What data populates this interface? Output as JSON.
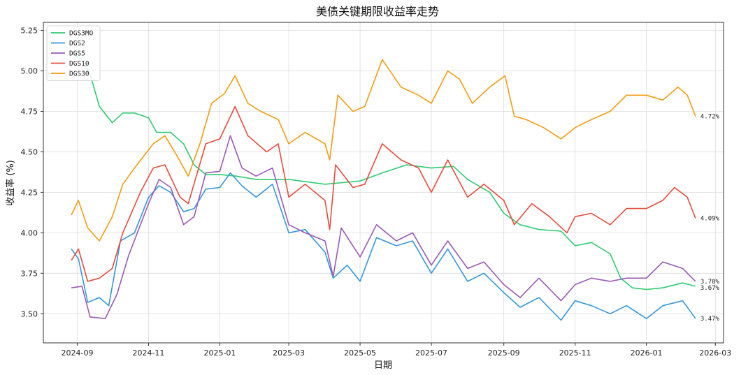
{
  "chart_data": {
    "type": "line",
    "title": "美债关键期限收益率走势",
    "xlabel": "日期",
    "ylabel": "收益率 (%)",
    "ylim": [
      3.32,
      5.3
    ],
    "xlim": [
      "2024-08-03",
      "2026-03-08"
    ],
    "y_ticks": [
      "3.50",
      "3.75",
      "4.00",
      "4.25",
      "4.50",
      "4.75",
      "5.00",
      "5.25"
    ],
    "x_ticks": [
      "2024-09",
      "2024-11",
      "2025-01",
      "2025-03",
      "2025-05",
      "2025-07",
      "2025-09",
      "2025-11",
      "2026-01",
      "2026-03"
    ],
    "grid": true,
    "legend_position": "top-left",
    "series": [
      {
        "name": "DGS3MO",
        "color": "#2ecc71",
        "end_label": "3.67%",
        "points": [
          [
            "2024-08-27",
            5.11
          ],
          [
            "2024-09-05",
            5.07
          ],
          [
            "2024-09-12",
            4.98
          ],
          [
            "2024-09-20",
            4.78
          ],
          [
            "2024-10-01",
            4.68
          ],
          [
            "2024-10-10",
            4.74
          ],
          [
            "2024-10-20",
            4.74
          ],
          [
            "2024-11-01",
            4.71
          ],
          [
            "2024-11-08",
            4.62
          ],
          [
            "2024-11-20",
            4.62
          ],
          [
            "2024-12-01",
            4.55
          ],
          [
            "2024-12-10",
            4.42
          ],
          [
            "2024-12-20",
            4.36
          ],
          [
            "2025-01-01",
            4.36
          ],
          [
            "2025-01-15",
            4.35
          ],
          [
            "2025-02-01",
            4.33
          ],
          [
            "2025-03-01",
            4.33
          ],
          [
            "2025-04-01",
            4.3
          ],
          [
            "2025-05-01",
            4.32
          ],
          [
            "2025-05-20",
            4.37
          ],
          [
            "2025-06-10",
            4.42
          ],
          [
            "2025-07-01",
            4.4
          ],
          [
            "2025-07-20",
            4.41
          ],
          [
            "2025-08-01",
            4.33
          ],
          [
            "2025-08-20",
            4.25
          ],
          [
            "2025-09-01",
            4.12
          ],
          [
            "2025-09-15",
            4.05
          ],
          [
            "2025-10-01",
            4.02
          ],
          [
            "2025-10-20",
            4.01
          ],
          [
            "2025-11-01",
            3.92
          ],
          [
            "2025-11-15",
            3.94
          ],
          [
            "2025-12-01",
            3.87
          ],
          [
            "2025-12-10",
            3.72
          ],
          [
            "2025-12-20",
            3.66
          ],
          [
            "2026-01-01",
            3.65
          ],
          [
            "2026-01-15",
            3.66
          ],
          [
            "2026-02-01",
            3.69
          ],
          [
            "2026-02-12",
            3.67
          ]
        ]
      },
      {
        "name": "DGS2",
        "color": "#3498db",
        "end_label": "3.47%",
        "points": [
          [
            "2024-08-27",
            3.9
          ],
          [
            "2024-09-02",
            3.84
          ],
          [
            "2024-09-10",
            3.57
          ],
          [
            "2024-09-20",
            3.6
          ],
          [
            "2024-09-28",
            3.55
          ],
          [
            "2024-10-08",
            3.95
          ],
          [
            "2024-10-20",
            4.0
          ],
          [
            "2024-11-01",
            4.22
          ],
          [
            "2024-11-10",
            4.29
          ],
          [
            "2024-11-20",
            4.25
          ],
          [
            "2024-12-01",
            4.13
          ],
          [
            "2024-12-10",
            4.15
          ],
          [
            "2024-12-20",
            4.27
          ],
          [
            "2025-01-01",
            4.28
          ],
          [
            "2025-01-10",
            4.37
          ],
          [
            "2025-01-20",
            4.29
          ],
          [
            "2025-02-01",
            4.22
          ],
          [
            "2025-02-15",
            4.3
          ],
          [
            "2025-03-01",
            4.0
          ],
          [
            "2025-03-15",
            4.02
          ],
          [
            "2025-04-01",
            3.88
          ],
          [
            "2025-04-08",
            3.72
          ],
          [
            "2025-04-20",
            3.8
          ],
          [
            "2025-05-01",
            3.7
          ],
          [
            "2025-05-15",
            3.97
          ],
          [
            "2025-06-01",
            3.92
          ],
          [
            "2025-06-15",
            3.95
          ],
          [
            "2025-07-01",
            3.75
          ],
          [
            "2025-07-15",
            3.9
          ],
          [
            "2025-08-01",
            3.7
          ],
          [
            "2025-08-15",
            3.75
          ],
          [
            "2025-09-01",
            3.63
          ],
          [
            "2025-09-15",
            3.54
          ],
          [
            "2025-10-01",
            3.6
          ],
          [
            "2025-10-20",
            3.46
          ],
          [
            "2025-11-01",
            3.58
          ],
          [
            "2025-11-15",
            3.55
          ],
          [
            "2025-12-01",
            3.5
          ],
          [
            "2025-12-15",
            3.55
          ],
          [
            "2026-01-01",
            3.47
          ],
          [
            "2026-01-15",
            3.55
          ],
          [
            "2026-02-01",
            3.58
          ],
          [
            "2026-02-12",
            3.47
          ]
        ]
      },
      {
        "name": "DGS5",
        "color": "#9b59b6",
        "end_label": "3.70%",
        "points": [
          [
            "2024-08-27",
            3.66
          ],
          [
            "2024-09-05",
            3.67
          ],
          [
            "2024-09-12",
            3.48
          ],
          [
            "2024-09-25",
            3.47
          ],
          [
            "2024-10-05",
            3.62
          ],
          [
            "2024-10-15",
            3.86
          ],
          [
            "2024-11-01",
            4.18
          ],
          [
            "2024-11-10",
            4.33
          ],
          [
            "2024-11-20",
            4.28
          ],
          [
            "2024-12-01",
            4.05
          ],
          [
            "2024-12-10",
            4.1
          ],
          [
            "2024-12-20",
            4.37
          ],
          [
            "2025-01-01",
            4.38
          ],
          [
            "2025-01-10",
            4.6
          ],
          [
            "2025-01-20",
            4.4
          ],
          [
            "2025-02-01",
            4.35
          ],
          [
            "2025-02-15",
            4.4
          ],
          [
            "2025-03-01",
            4.05
          ],
          [
            "2025-03-15",
            4.0
          ],
          [
            "2025-04-01",
            3.95
          ],
          [
            "2025-04-08",
            3.73
          ],
          [
            "2025-04-15",
            4.03
          ],
          [
            "2025-05-01",
            3.85
          ],
          [
            "2025-05-15",
            4.05
          ],
          [
            "2025-06-01",
            3.95
          ],
          [
            "2025-06-15",
            4.0
          ],
          [
            "2025-07-01",
            3.8
          ],
          [
            "2025-07-15",
            3.95
          ],
          [
            "2025-08-01",
            3.78
          ],
          [
            "2025-08-15",
            3.82
          ],
          [
            "2025-09-01",
            3.68
          ],
          [
            "2025-09-15",
            3.6
          ],
          [
            "2025-10-01",
            3.72
          ],
          [
            "2025-10-20",
            3.58
          ],
          [
            "2025-11-01",
            3.68
          ],
          [
            "2025-11-15",
            3.72
          ],
          [
            "2025-12-01",
            3.7
          ],
          [
            "2025-12-15",
            3.72
          ],
          [
            "2026-01-01",
            3.72
          ],
          [
            "2026-01-15",
            3.82
          ],
          [
            "2026-02-01",
            3.78
          ],
          [
            "2026-02-12",
            3.7
          ]
        ]
      },
      {
        "name": "DGS10",
        "color": "#e74c3c",
        "end_label": "4.09%",
        "points": [
          [
            "2024-08-27",
            3.83
          ],
          [
            "2024-09-02",
            3.9
          ],
          [
            "2024-09-10",
            3.7
          ],
          [
            "2024-09-20",
            3.72
          ],
          [
            "2024-10-01",
            3.78
          ],
          [
            "2024-10-10",
            4.0
          ],
          [
            "2024-10-25",
            4.25
          ],
          [
            "2024-11-05",
            4.4
          ],
          [
            "2024-11-15",
            4.42
          ],
          [
            "2024-11-28",
            4.22
          ],
          [
            "2024-12-05",
            4.18
          ],
          [
            "2024-12-20",
            4.55
          ],
          [
            "2025-01-01",
            4.58
          ],
          [
            "2025-01-14",
            4.78
          ],
          [
            "2025-01-25",
            4.6
          ],
          [
            "2025-02-10",
            4.5
          ],
          [
            "2025-02-20",
            4.55
          ],
          [
            "2025-03-01",
            4.22
          ],
          [
            "2025-03-15",
            4.3
          ],
          [
            "2025-04-01",
            4.2
          ],
          [
            "2025-04-05",
            4.02
          ],
          [
            "2025-04-10",
            4.42
          ],
          [
            "2025-04-25",
            4.28
          ],
          [
            "2025-05-05",
            4.3
          ],
          [
            "2025-05-20",
            4.55
          ],
          [
            "2025-06-05",
            4.45
          ],
          [
            "2025-06-20",
            4.4
          ],
          [
            "2025-07-01",
            4.25
          ],
          [
            "2025-07-15",
            4.45
          ],
          [
            "2025-08-01",
            4.22
          ],
          [
            "2025-08-15",
            4.3
          ],
          [
            "2025-09-01",
            4.2
          ],
          [
            "2025-09-10",
            4.05
          ],
          [
            "2025-09-25",
            4.18
          ],
          [
            "2025-10-10",
            4.1
          ],
          [
            "2025-10-25",
            4.0
          ],
          [
            "2025-11-01",
            4.1
          ],
          [
            "2025-11-15",
            4.12
          ],
          [
            "2025-12-01",
            4.05
          ],
          [
            "2025-12-15",
            4.15
          ],
          [
            "2026-01-01",
            4.15
          ],
          [
            "2026-01-15",
            4.2
          ],
          [
            "2026-01-25",
            4.28
          ],
          [
            "2026-02-05",
            4.22
          ],
          [
            "2026-02-12",
            4.09
          ]
        ]
      },
      {
        "name": "DGS30",
        "color": "#f39c12",
        "end_label": "4.72%",
        "points": [
          [
            "2024-08-27",
            4.11
          ],
          [
            "2024-09-02",
            4.2
          ],
          [
            "2024-09-10",
            4.03
          ],
          [
            "2024-09-20",
            3.95
          ],
          [
            "2024-10-01",
            4.1
          ],
          [
            "2024-10-10",
            4.3
          ],
          [
            "2024-10-20",
            4.4
          ],
          [
            "2024-11-05",
            4.55
          ],
          [
            "2024-11-15",
            4.6
          ],
          [
            "2024-11-25",
            4.48
          ],
          [
            "2024-12-05",
            4.35
          ],
          [
            "2024-12-15",
            4.55
          ],
          [
            "2024-12-25",
            4.8
          ],
          [
            "2025-01-05",
            4.86
          ],
          [
            "2025-01-14",
            4.97
          ],
          [
            "2025-01-25",
            4.8
          ],
          [
            "2025-02-05",
            4.75
          ],
          [
            "2025-02-20",
            4.7
          ],
          [
            "2025-03-01",
            4.55
          ],
          [
            "2025-03-15",
            4.62
          ],
          [
            "2025-04-01",
            4.55
          ],
          [
            "2025-04-05",
            4.45
          ],
          [
            "2025-04-12",
            4.85
          ],
          [
            "2025-04-25",
            4.75
          ],
          [
            "2025-05-05",
            4.78
          ],
          [
            "2025-05-20",
            5.07
          ],
          [
            "2025-06-05",
            4.9
          ],
          [
            "2025-06-20",
            4.85
          ],
          [
            "2025-07-01",
            4.8
          ],
          [
            "2025-07-15",
            5.0
          ],
          [
            "2025-07-25",
            4.95
          ],
          [
            "2025-08-05",
            4.8
          ],
          [
            "2025-08-20",
            4.9
          ],
          [
            "2025-09-02",
            4.97
          ],
          [
            "2025-09-10",
            4.72
          ],
          [
            "2025-09-20",
            4.7
          ],
          [
            "2025-10-05",
            4.65
          ],
          [
            "2025-10-20",
            4.58
          ],
          [
            "2025-11-01",
            4.65
          ],
          [
            "2025-11-15",
            4.7
          ],
          [
            "2025-12-01",
            4.75
          ],
          [
            "2025-12-15",
            4.85
          ],
          [
            "2026-01-01",
            4.85
          ],
          [
            "2026-01-15",
            4.82
          ],
          [
            "2026-01-28",
            4.9
          ],
          [
            "2026-02-05",
            4.85
          ],
          [
            "2026-02-12",
            4.72
          ]
        ]
      }
    ]
  }
}
